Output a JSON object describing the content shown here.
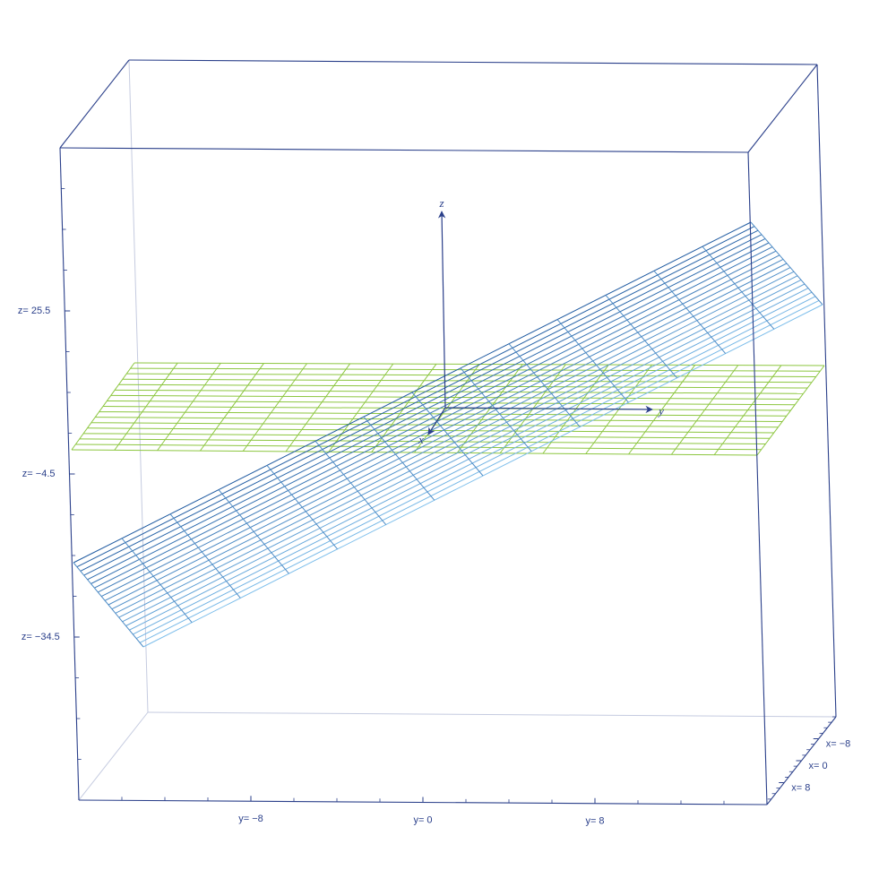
{
  "chart_data": {
    "type": "surface3d",
    "axis_labels": {
      "x": "x",
      "y": "y",
      "z": "z"
    },
    "xlim": [
      -16,
      16
    ],
    "ylim": [
      -16,
      16
    ],
    "zlim": [
      -64.5,
      55.5
    ],
    "xticks": [
      {
        "value": -8,
        "label": "x= −8"
      },
      {
        "value": 0,
        "label": "x= 0"
      },
      {
        "value": 8,
        "label": "x= 8"
      }
    ],
    "yticks": [
      {
        "value": -8,
        "label": "y= −8"
      },
      {
        "value": 0,
        "label": "y= 0"
      },
      {
        "value": 8,
        "label": "y= 8"
      }
    ],
    "zticks": [
      {
        "value": 25.5,
        "label": "z= 25.5"
      },
      {
        "value": -4.5,
        "label": "z= −4.5"
      },
      {
        "value": -34.5,
        "label": "z= −34.5"
      }
    ]
  }
}
